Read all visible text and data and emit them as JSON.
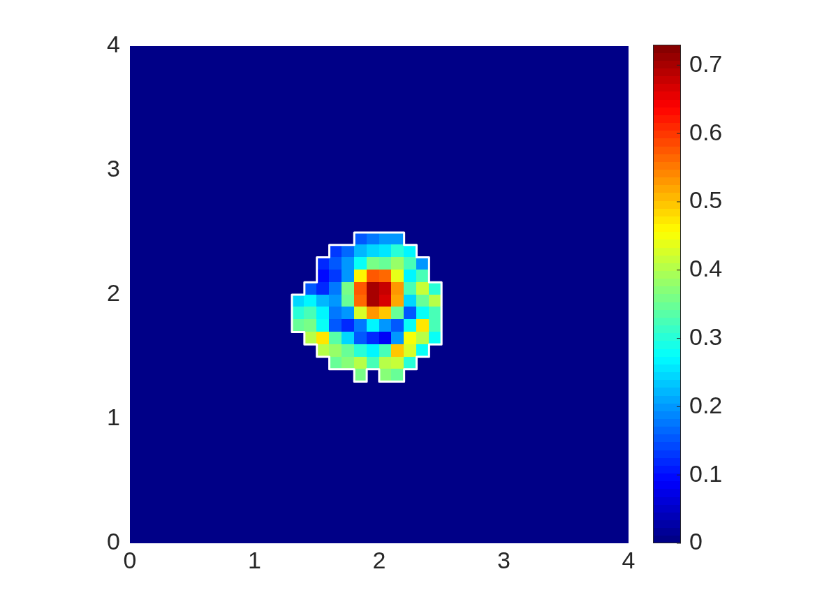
{
  "chart_data": {
    "type": "heatmap",
    "x": [
      0.05,
      0.15,
      0.25,
      0.35,
      0.45,
      0.55,
      0.65,
      0.75,
      0.85,
      0.95,
      1.05,
      1.15,
      1.25,
      1.35,
      1.45,
      1.55,
      1.65,
      1.75,
      1.85,
      1.95,
      2.05,
      2.15,
      2.25,
      2.35,
      2.45,
      2.55,
      2.65,
      2.75,
      2.85,
      2.95,
      3.05,
      3.15,
      3.25,
      3.35,
      3.45,
      3.55,
      3.65,
      3.75,
      3.85,
      3.95
    ],
    "cells": [
      [
        0,
        0,
        0,
        0,
        0,
        0,
        0,
        0,
        0,
        0,
        0,
        0,
        0,
        0,
        0,
        0,
        0,
        0,
        0,
        0,
        0,
        0,
        0,
        0,
        0,
        0,
        0,
        0,
        0,
        0,
        0,
        0,
        0,
        0,
        0,
        0,
        0,
        0,
        0,
        0
      ],
      [
        0,
        0,
        0,
        0,
        0,
        0,
        0,
        0,
        0,
        0,
        0,
        0,
        0,
        0,
        0,
        0,
        0,
        0,
        0,
        0,
        0,
        0,
        0,
        0,
        0,
        0,
        0,
        0,
        0,
        0,
        0,
        0,
        0,
        0,
        0,
        0,
        0,
        0,
        0,
        0
      ],
      [
        0,
        0,
        0,
        0,
        0,
        0,
        0,
        0,
        0,
        0,
        0,
        0,
        0,
        0,
        0,
        0,
        0,
        0,
        0,
        0,
        0,
        0,
        0,
        0,
        0,
        0,
        0,
        0,
        0,
        0,
        0,
        0,
        0,
        0,
        0,
        0,
        0,
        0,
        0,
        0
      ],
      [
        0,
        0,
        0,
        0,
        0,
        0,
        0,
        0,
        0,
        0,
        0,
        0,
        0,
        0,
        0,
        0,
        0,
        0,
        0,
        0,
        0,
        0,
        0,
        0,
        0,
        0,
        0,
        0,
        0,
        0,
        0,
        0,
        0,
        0,
        0,
        0,
        0,
        0,
        0,
        0
      ],
      [
        0,
        0,
        0,
        0,
        0,
        0,
        0,
        0,
        0,
        0,
        0,
        0,
        0,
        0,
        0,
        0,
        0,
        0,
        0,
        0,
        0,
        0,
        0,
        0,
        0,
        0,
        0,
        0,
        0,
        0,
        0,
        0,
        0,
        0,
        0,
        0,
        0,
        0,
        0,
        0
      ],
      [
        0,
        0,
        0,
        0,
        0,
        0,
        0,
        0,
        0,
        0,
        0,
        0,
        0,
        0,
        0,
        0,
        0,
        0,
        0,
        0,
        0,
        0,
        0,
        0,
        0,
        0,
        0,
        0,
        0,
        0,
        0,
        0,
        0,
        0,
        0,
        0,
        0,
        0,
        0,
        0
      ],
      [
        0,
        0,
        0,
        0,
        0,
        0,
        0,
        0,
        0,
        0,
        0,
        0,
        0,
        0,
        0,
        0,
        0,
        0,
        0,
        0,
        0,
        0,
        0,
        0,
        0,
        0,
        0,
        0,
        0,
        0,
        0,
        0,
        0,
        0,
        0,
        0,
        0,
        0,
        0,
        0
      ],
      [
        0,
        0,
        0,
        0,
        0,
        0,
        0,
        0,
        0,
        0,
        0,
        0,
        0,
        0,
        0,
        0,
        0,
        0,
        0,
        0,
        0,
        0,
        0,
        0,
        0,
        0,
        0,
        0,
        0,
        0,
        0,
        0,
        0,
        0,
        0,
        0,
        0,
        0,
        0,
        0
      ],
      [
        0,
        0,
        0,
        0,
        0,
        0,
        0,
        0,
        0,
        0,
        0,
        0,
        0,
        0,
        0,
        0,
        0,
        0,
        0,
        0,
        0,
        0,
        0,
        0,
        0,
        0,
        0,
        0,
        0,
        0,
        0,
        0,
        0,
        0,
        0,
        0,
        0,
        0,
        0,
        0
      ],
      [
        0,
        0,
        0,
        0,
        0,
        0,
        0,
        0,
        0,
        0,
        0,
        0,
        0,
        0,
        0,
        0,
        0,
        0,
        0,
        0,
        0,
        0,
        0,
        0,
        0,
        0,
        0,
        0,
        0,
        0,
        0,
        0,
        0,
        0,
        0,
        0,
        0,
        0,
        0,
        0
      ],
      [
        0,
        0,
        0,
        0,
        0,
        0,
        0,
        0,
        0,
        0,
        0,
        0,
        0,
        0,
        0,
        0,
        0,
        0,
        0,
        0,
        0,
        0,
        0,
        0,
        0,
        0,
        0,
        0,
        0,
        0,
        0,
        0,
        0,
        0,
        0,
        0,
        0,
        0,
        0,
        0
      ],
      [
        0,
        0,
        0,
        0,
        0,
        0,
        0,
        0,
        0,
        0,
        0,
        0,
        0,
        0,
        0,
        0,
        0,
        0,
        0,
        0,
        0,
        0,
        0,
        0,
        0,
        0,
        0,
        0,
        0,
        0,
        0,
        0,
        0,
        0,
        0,
        0,
        0,
        0,
        0,
        0
      ],
      [
        0,
        0,
        0,
        0,
        0,
        0,
        0,
        0,
        0,
        0,
        0,
        0,
        0,
        0,
        0,
        0,
        0,
        0,
        0,
        0,
        0,
        0,
        0,
        0,
        0,
        0,
        0,
        0,
        0,
        0,
        0,
        0,
        0,
        0,
        0,
        0,
        0,
        0,
        0,
        0
      ],
      [
        0,
        0,
        0,
        0,
        0,
        0,
        0,
        0,
        0,
        0,
        0,
        0,
        0,
        0,
        0,
        0,
        0,
        0,
        0,
        0,
        0,
        0,
        0,
        0,
        0,
        0,
        0,
        0,
        0,
        0,
        0,
        0,
        0,
        0,
        0,
        0,
        0,
        0,
        0,
        0
      ],
      [
        0,
        0,
        0,
        0,
        0,
        0,
        0,
        0,
        0,
        0,
        0,
        0,
        0,
        0,
        0,
        0,
        0,
        0,
        0,
        0,
        0,
        0,
        0,
        0,
        0,
        0,
        0,
        0,
        0,
        0,
        0,
        0,
        0,
        0,
        0,
        0,
        0,
        0,
        0,
        0
      ],
      [
        0,
        0,
        0,
        0,
        0,
        0,
        0,
        0,
        0,
        0,
        0,
        0,
        0,
        0,
        0,
        0,
        0,
        0,
        0.15,
        0.18,
        0.2,
        0.2,
        0,
        0,
        0,
        0,
        0,
        0,
        0,
        0,
        0,
        0,
        0,
        0,
        0,
        0,
        0,
        0,
        0,
        0
      ],
      [
        0,
        0,
        0,
        0,
        0,
        0,
        0,
        0,
        0,
        0,
        0,
        0,
        0,
        0,
        0,
        0,
        0.13,
        0.17,
        0.22,
        0.25,
        0.26,
        0.3,
        0.27,
        0,
        0,
        0,
        0,
        0,
        0,
        0,
        0,
        0,
        0,
        0,
        0,
        0,
        0,
        0,
        0,
        0
      ],
      [
        0,
        0,
        0,
        0,
        0,
        0,
        0,
        0,
        0,
        0,
        0,
        0,
        0,
        0,
        0,
        0.12,
        0.15,
        0.2,
        0.28,
        0.36,
        0.35,
        0.38,
        0.32,
        0.2,
        0,
        0,
        0,
        0,
        0,
        0,
        0,
        0,
        0,
        0,
        0,
        0,
        0,
        0,
        0,
        0
      ],
      [
        0,
        0,
        0,
        0,
        0,
        0,
        0,
        0,
        0,
        0,
        0,
        0,
        0,
        0,
        0,
        0.1,
        0.13,
        0.2,
        0.46,
        0.58,
        0.57,
        0.44,
        0.27,
        0.32,
        0,
        0,
        0,
        0,
        0,
        0,
        0,
        0,
        0,
        0,
        0,
        0,
        0,
        0,
        0,
        0
      ],
      [
        0,
        0,
        0,
        0,
        0,
        0,
        0,
        0,
        0,
        0,
        0,
        0,
        0,
        0,
        0.15,
        0.12,
        0.18,
        0.36,
        0.58,
        0.7,
        0.68,
        0.53,
        0.32,
        0.42,
        0.3,
        0,
        0,
        0,
        0,
        0,
        0,
        0,
        0,
        0,
        0,
        0,
        0,
        0,
        0,
        0
      ],
      [
        0,
        0,
        0,
        0,
        0,
        0,
        0,
        0,
        0,
        0,
        0,
        0,
        0,
        0.25,
        0.27,
        0.22,
        0.2,
        0.35,
        0.57,
        0.7,
        0.67,
        0.52,
        0.24,
        0.35,
        0.4,
        0,
        0,
        0,
        0,
        0,
        0,
        0,
        0,
        0,
        0,
        0,
        0,
        0,
        0,
        0
      ],
      [
        0,
        0,
        0,
        0,
        0,
        0,
        0,
        0,
        0,
        0,
        0,
        0,
        0,
        0.3,
        0.32,
        0.27,
        0.18,
        0.2,
        0.43,
        0.53,
        0.5,
        0.35,
        0.15,
        0.28,
        0.33,
        0,
        0,
        0,
        0,
        0,
        0,
        0,
        0,
        0,
        0,
        0,
        0,
        0,
        0,
        0
      ],
      [
        0,
        0,
        0,
        0,
        0,
        0,
        0,
        0,
        0,
        0,
        0,
        0,
        0,
        0.35,
        0.36,
        0.28,
        0.15,
        0.12,
        0.18,
        0.27,
        0.2,
        0.15,
        0.28,
        0.47,
        0.32,
        0,
        0,
        0,
        0,
        0,
        0,
        0,
        0,
        0,
        0,
        0,
        0,
        0,
        0,
        0
      ],
      [
        0,
        0,
        0,
        0,
        0,
        0,
        0,
        0,
        0,
        0,
        0,
        0,
        0,
        0,
        0.4,
        0.47,
        0.34,
        0.25,
        0.15,
        0.12,
        0.09,
        0.2,
        0.45,
        0.4,
        0.28,
        0,
        0,
        0,
        0,
        0,
        0,
        0,
        0,
        0,
        0,
        0,
        0,
        0,
        0,
        0
      ],
      [
        0,
        0,
        0,
        0,
        0,
        0,
        0,
        0,
        0,
        0,
        0,
        0,
        0,
        0,
        0,
        0.4,
        0.38,
        0.35,
        0.3,
        0.27,
        0.33,
        0.5,
        0.43,
        0.28,
        0,
        0,
        0,
        0,
        0,
        0,
        0,
        0,
        0,
        0,
        0,
        0,
        0,
        0,
        0,
        0
      ],
      [
        0,
        0,
        0,
        0,
        0,
        0,
        0,
        0,
        0,
        0,
        0,
        0,
        0,
        0,
        0,
        0,
        0.35,
        0.37,
        0.4,
        0.32,
        0.4,
        0.42,
        0.3,
        0,
        0,
        0,
        0,
        0,
        0,
        0,
        0,
        0,
        0,
        0,
        0,
        0,
        0,
        0,
        0,
        0
      ],
      [
        0,
        0,
        0,
        0,
        0,
        0,
        0,
        0,
        0,
        0,
        0,
        0,
        0,
        0,
        0,
        0,
        0,
        0,
        0.36,
        0,
        0.37,
        0.35,
        0,
        0,
        0,
        0,
        0,
        0,
        0,
        0,
        0,
        0,
        0,
        0,
        0,
        0,
        0,
        0,
        0,
        0
      ],
      [
        0,
        0,
        0,
        0,
        0,
        0,
        0,
        0,
        0,
        0,
        0,
        0,
        0,
        0,
        0,
        0,
        0,
        0,
        0,
        0,
        0,
        0,
        0,
        0,
        0,
        0,
        0,
        0,
        0,
        0,
        0,
        0,
        0,
        0,
        0,
        0,
        0,
        0,
        0,
        0
      ],
      [
        0,
        0,
        0,
        0,
        0,
        0,
        0,
        0,
        0,
        0,
        0,
        0,
        0,
        0,
        0,
        0,
        0,
        0,
        0,
        0,
        0,
        0,
        0,
        0,
        0,
        0,
        0,
        0,
        0,
        0,
        0,
        0,
        0,
        0,
        0,
        0,
        0,
        0,
        0,
        0
      ],
      [
        0,
        0,
        0,
        0,
        0,
        0,
        0,
        0,
        0,
        0,
        0,
        0,
        0,
        0,
        0,
        0,
        0,
        0,
        0,
        0,
        0,
        0,
        0,
        0,
        0,
        0,
        0,
        0,
        0,
        0,
        0,
        0,
        0,
        0,
        0,
        0,
        0,
        0,
        0,
        0
      ],
      [
        0,
        0,
        0,
        0,
        0,
        0,
        0,
        0,
        0,
        0,
        0,
        0,
        0,
        0,
        0,
        0,
        0,
        0,
        0,
        0,
        0,
        0,
        0,
        0,
        0,
        0,
        0,
        0,
        0,
        0,
        0,
        0,
        0,
        0,
        0,
        0,
        0,
        0,
        0,
        0
      ],
      [
        0,
        0,
        0,
        0,
        0,
        0,
        0,
        0,
        0,
        0,
        0,
        0,
        0,
        0,
        0,
        0,
        0,
        0,
        0,
        0,
        0,
        0,
        0,
        0,
        0,
        0,
        0,
        0,
        0,
        0,
        0,
        0,
        0,
        0,
        0,
        0,
        0,
        0,
        0,
        0
      ],
      [
        0,
        0,
        0,
        0,
        0,
        0,
        0,
        0,
        0,
        0,
        0,
        0,
        0,
        0,
        0,
        0,
        0,
        0,
        0,
        0,
        0,
        0,
        0,
        0,
        0,
        0,
        0,
        0,
        0,
        0,
        0,
        0,
        0,
        0,
        0,
        0,
        0,
        0,
        0,
        0
      ],
      [
        0,
        0,
        0,
        0,
        0,
        0,
        0,
        0,
        0,
        0,
        0,
        0,
        0,
        0,
        0,
        0,
        0,
        0,
        0,
        0,
        0,
        0,
        0,
        0,
        0,
        0,
        0,
        0,
        0,
        0,
        0,
        0,
        0,
        0,
        0,
        0,
        0,
        0,
        0,
        0
      ],
      [
        0,
        0,
        0,
        0,
        0,
        0,
        0,
        0,
        0,
        0,
        0,
        0,
        0,
        0,
        0,
        0,
        0,
        0,
        0,
        0,
        0,
        0,
        0,
        0,
        0,
        0,
        0,
        0,
        0,
        0,
        0,
        0,
        0,
        0,
        0,
        0,
        0,
        0,
        0,
        0
      ],
      [
        0,
        0,
        0,
        0,
        0,
        0,
        0,
        0,
        0,
        0,
        0,
        0,
        0,
        0,
        0,
        0,
        0,
        0,
        0,
        0,
        0,
        0,
        0,
        0,
        0,
        0,
        0,
        0,
        0,
        0,
        0,
        0,
        0,
        0,
        0,
        0,
        0,
        0,
        0,
        0
      ],
      [
        0,
        0,
        0,
        0,
        0,
        0,
        0,
        0,
        0,
        0,
        0,
        0,
        0,
        0,
        0,
        0,
        0,
        0,
        0,
        0,
        0,
        0,
        0,
        0,
        0,
        0,
        0,
        0,
        0,
        0,
        0,
        0,
        0,
        0,
        0,
        0,
        0,
        0,
        0,
        0
      ],
      [
        0,
        0,
        0,
        0,
        0,
        0,
        0,
        0,
        0,
        0,
        0,
        0,
        0,
        0,
        0,
        0,
        0,
        0,
        0,
        0,
        0,
        0,
        0,
        0,
        0,
        0,
        0,
        0,
        0,
        0,
        0,
        0,
        0,
        0,
        0,
        0,
        0,
        0,
        0,
        0
      ],
      [
        0,
        0,
        0,
        0,
        0,
        0,
        0,
        0,
        0,
        0,
        0,
        0,
        0,
        0,
        0,
        0,
        0,
        0,
        0,
        0,
        0,
        0,
        0,
        0,
        0,
        0,
        0,
        0,
        0,
        0,
        0,
        0,
        0,
        0,
        0,
        0,
        0,
        0,
        0,
        0
      ],
      [
        0,
        0,
        0,
        0,
        0,
        0,
        0,
        0,
        0,
        0,
        0,
        0,
        0,
        0,
        0,
        0,
        0,
        0,
        0,
        0,
        0,
        0,
        0,
        0,
        0,
        0,
        0,
        0,
        0,
        0,
        0,
        0,
        0,
        0,
        0,
        0,
        0,
        0,
        0,
        0
      ]
    ],
    "xlim": [
      0,
      4
    ],
    "ylim": [
      0,
      4
    ],
    "xticks": [
      0,
      1,
      2,
      3,
      4
    ],
    "yticks": [
      0,
      1,
      2,
      3,
      4
    ],
    "clim": [
      0,
      0.73
    ],
    "cticks": [
      0,
      0.1,
      0.2,
      0.3,
      0.4,
      0.5,
      0.6,
      0.7
    ]
  }
}
